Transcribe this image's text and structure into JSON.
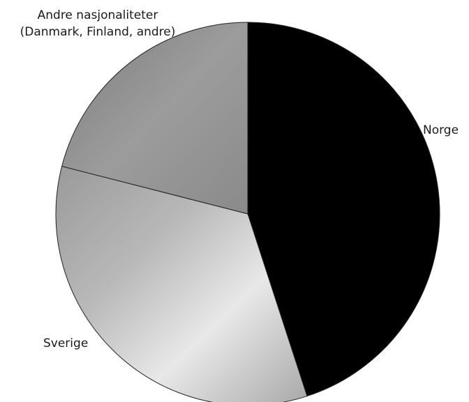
{
  "chart_data": {
    "type": "pie",
    "categories": [
      "Norge",
      "Sverige",
      "Andre nasjonaliteter (Danmark, Finland, andre)"
    ],
    "values": [
      45,
      34,
      21
    ],
    "colors": [
      "#000000",
      "#c4c4c4",
      "#8a8a8a"
    ],
    "labels": {
      "norge": "Norge",
      "sverige": "Sverige",
      "andre_line1": "Andre nasjonaliteter",
      "andre_line2": "(Danmark, Finland, andre)"
    },
    "start_angle": "12 o'clock",
    "direction": "clockwise",
    "legend": "none"
  }
}
